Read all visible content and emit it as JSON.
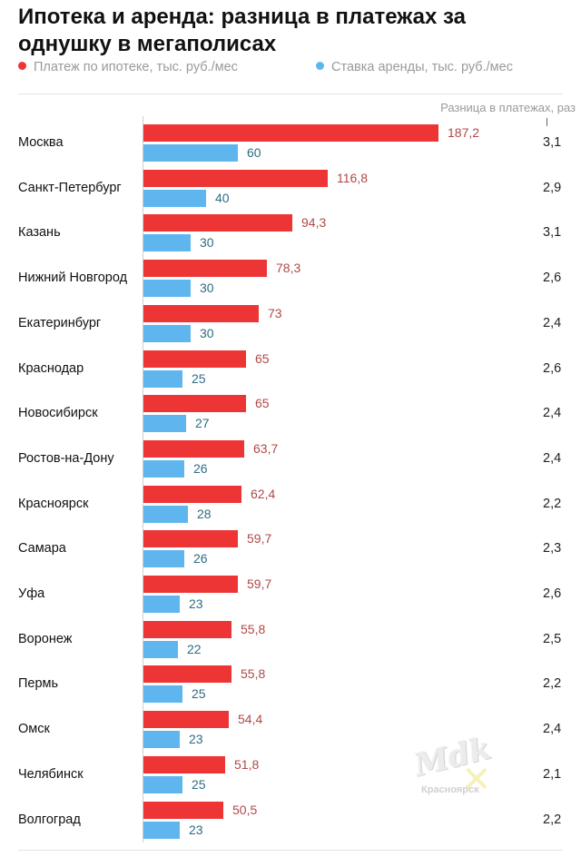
{
  "title": "Ипотека и аренда: разница в платежах за однушку в мегаполисах",
  "legend": {
    "mortgage": "Платеж по ипотеке, тыс. руб./мес",
    "rent": "Ставка аренды, тыс. руб./мес"
  },
  "ratio_header": "Разница в платежах, раз",
  "colors": {
    "mortgage": "#ee3535",
    "rent": "#5fb6ee",
    "mortgage_label": "#b04848",
    "rent_label": "#2d6d86"
  },
  "watermark": {
    "logo": "Mdk",
    "sub": "Красноярск"
  },
  "chart_data": {
    "type": "bar",
    "orientation": "horizontal",
    "xlim": [
      0,
      187.2
    ],
    "categories": [
      "Москва",
      "Санкт-Петербург",
      "Казань",
      "Нижний Новгород",
      "Екатеринбург",
      "Краснодар",
      "Новосибирск",
      "Ростов-на-Дону",
      "Красноярск",
      "Самара",
      "Уфа",
      "Воронеж",
      "Пермь",
      "Омск",
      "Челябинск",
      "Волгоград"
    ],
    "series": [
      {
        "name": "Платеж по ипотеке, тыс. руб./мес",
        "values": [
          187.2,
          116.8,
          94.3,
          78.3,
          73,
          65,
          65,
          63.7,
          62.4,
          59.7,
          59.7,
          55.8,
          55.8,
          54.4,
          51.8,
          50.5
        ],
        "labels": [
          "187,2",
          "116,8",
          "94,3",
          "78,3",
          "73",
          "65",
          "65",
          "63,7",
          "62,4",
          "59,7",
          "59,7",
          "55,8",
          "55,8",
          "54,4",
          "51,8",
          "50,5"
        ]
      },
      {
        "name": "Ставка аренды, тыс. руб./мес",
        "values": [
          60,
          40,
          30,
          30,
          30,
          25,
          27,
          26,
          28,
          26,
          23,
          22,
          25,
          23,
          25,
          23
        ],
        "labels": [
          "60",
          "40",
          "30",
          "30",
          "30",
          "25",
          "27",
          "26",
          "28",
          "26",
          "23",
          "22",
          "25",
          "23",
          "25",
          "23"
        ]
      }
    ],
    "ratio": {
      "name": "Разница в платежах, раз",
      "values": [
        3.1,
        2.9,
        3.1,
        2.6,
        2.4,
        2.6,
        2.4,
        2.4,
        2.2,
        2.3,
        2.6,
        2.5,
        2.2,
        2.4,
        2.1,
        2.2
      ],
      "labels": [
        "3,1",
        "2,9",
        "3,1",
        "2,6",
        "2,4",
        "2,6",
        "2,4",
        "2,4",
        "2,2",
        "2,3",
        "2,6",
        "2,5",
        "2,2",
        "2,4",
        "2,1",
        "2,2"
      ]
    }
  }
}
